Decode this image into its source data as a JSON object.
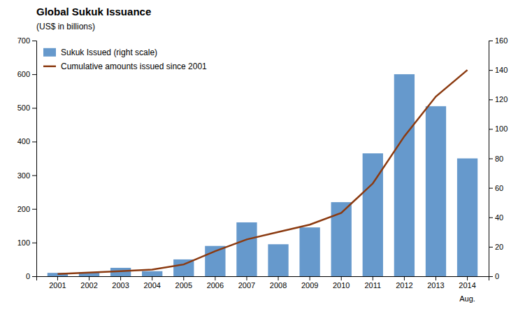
{
  "chart_data": {
    "type": "bar",
    "title": "Global Sukuk Issuance",
    "subtitle": "(US$ in billions)",
    "categories": [
      "2001",
      "2002",
      "2003",
      "2004",
      "2005",
      "2006",
      "2007",
      "2008",
      "2009",
      "2010",
      "2011",
      "2012",
      "2013",
      "2014"
    ],
    "series": [
      {
        "name": "Sukuk Issued (right scale)",
        "type": "bar",
        "color": "#6699CC",
        "values": [
          10,
          12,
          25,
          15,
          50,
          90,
          160,
          95,
          145,
          220,
          365,
          600,
          505,
          350
        ]
      },
      {
        "name": "Cumulative amounts issued since 2001",
        "type": "line",
        "color": "#8B3A10",
        "axis": "y2",
        "values": [
          1.5,
          2.5,
          3.5,
          4.5,
          8,
          17,
          25,
          30,
          35,
          43,
          63,
          95,
          122,
          140
        ]
      }
    ],
    "ylim": [
      0,
      700
    ],
    "yticks": [
      0,
      100,
      200,
      300,
      400,
      500,
      600,
      700
    ],
    "y2lim": [
      0,
      160
    ],
    "y2ticks": [
      0,
      20,
      40,
      60,
      80,
      100,
      120,
      140,
      160
    ],
    "annotations": [
      {
        "text": "Aug.",
        "x": "2014"
      }
    ],
    "legend": "upper left",
    "grid": false
  }
}
